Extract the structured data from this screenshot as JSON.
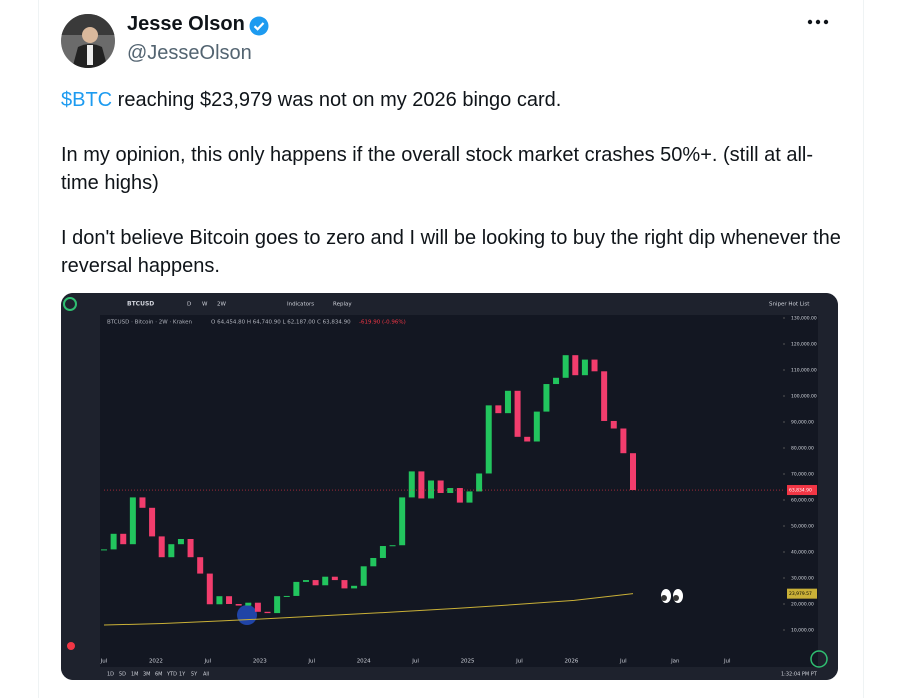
{
  "tweet": {
    "author_name": "Jesse Olson",
    "handle": "@JesseOlson",
    "paragraphs": [
      {
        "cashtag": "$BTC",
        "text": " reaching $23,979 was not on my 2026 bingo card."
      },
      {
        "text": "In my opinion, this only happens if the overall stock market crashes 50%+. (still at all-time highs)"
      },
      {
        "text": "I don't believe Bitcoin goes to zero and I will be looking to buy the right dip whenever the reversal happens."
      }
    ]
  },
  "chart": {
    "symbol": "BTCUSD",
    "timeframes": [
      "D",
      "W",
      "2W"
    ],
    "toolbar": [
      "Indicators",
      "Replay"
    ],
    "watchlist": "Sniper Hot List",
    "legend": "BTCUSD · Bitcoin · 2W · Kraken",
    "ohlc": "O 64,454.80 H 64,740.90 L 62,187.00 C 63,834.90",
    "change": "-619.90 (-0.96%)",
    "ylim": [
      0,
      130000
    ],
    "yticks": [
      {
        "value": 10000,
        "label": "10,000.00"
      },
      {
        "value": 20000,
        "label": "20,000.00"
      },
      {
        "value": 30000,
        "label": "30,000.00"
      },
      {
        "value": 40000,
        "label": "40,000.00"
      },
      {
        "value": 50000,
        "label": "50,000.00"
      },
      {
        "value": 60000,
        "label": "60,000.00"
      },
      {
        "value": 70000,
        "label": "70,000.00"
      },
      {
        "value": 80000,
        "label": "80,000.00"
      },
      {
        "value": 90000,
        "label": "90,000.00"
      },
      {
        "value": 100000,
        "label": "100,000.00"
      },
      {
        "value": 110000,
        "label": "110,000.00"
      },
      {
        "value": 120000,
        "label": "120,000.00"
      },
      {
        "value": 130000,
        "label": "130,000.00"
      }
    ],
    "x_labels": [
      "Jul",
      "2022",
      "Jul",
      "2023",
      "Jul",
      "2024",
      "Jul",
      "2025",
      "Jul",
      "2026",
      "Jul",
      "Jan",
      "Jul"
    ],
    "price": [
      41000,
      47000,
      43000,
      61000,
      57000,
      46000,
      38000,
      43000,
      45000,
      38000,
      31700,
      19900,
      23000,
      20000,
      19400,
      20500,
      17000,
      16500,
      23000,
      23100,
      28500,
      29200,
      27200,
      30500,
      29200,
      26000,
      27000,
      34500,
      37700,
      42300,
      42600,
      61000,
      71000,
      60600,
      67500,
      62700,
      64600,
      59000,
      63300,
      70200,
      96400,
      93400,
      102000,
      84300,
      82500,
      94000,
      104600,
      107000,
      115700,
      108000,
      114000,
      109500,
      90400,
      87500,
      78000,
      63834.9
    ],
    "ma200": [
      11900,
      12500,
      13500,
      14600,
      15800,
      17000,
      18300,
      19800,
      21400,
      23979.57
    ],
    "last_price": {
      "value": 63834.9,
      "label": "63,834.90"
    },
    "ma_label": {
      "value": 23979.57,
      "label": "23,979.57"
    },
    "ranges": [
      "1D",
      "5D",
      "1M",
      "3M",
      "6M",
      "YTD",
      "1Y",
      "5Y",
      "All"
    ],
    "time": "1:32:04 PM PT"
  }
}
